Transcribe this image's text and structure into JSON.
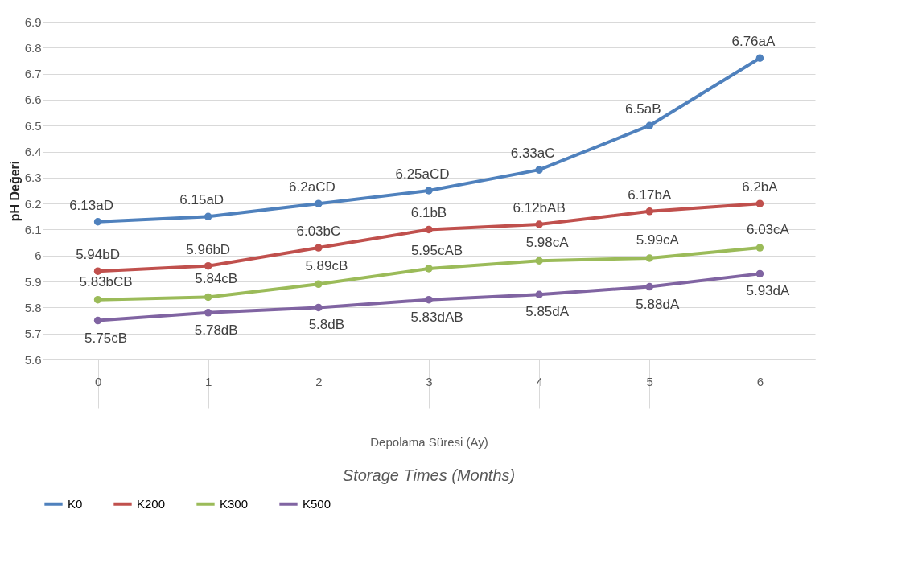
{
  "chart_data": {
    "type": "line",
    "xlabel": "Depolama Süresi (Ay)",
    "ylabel": "pH Değeri",
    "annotations": [
      "Storage Times (Months)"
    ],
    "categories": [
      "0",
      "1",
      "2",
      "3",
      "4",
      "5",
      "6"
    ],
    "series": [
      {
        "name": "K0",
        "color": "#4f81bd",
        "values": [
          6.13,
          6.15,
          6.2,
          6.25,
          6.33,
          6.5,
          6.76
        ],
        "value_labels": [
          "6.13aD",
          "6.15aD",
          "6.2aCD",
          "6.25aCD",
          "6.33aC",
          "6.5aB",
          "6.76aA"
        ]
      },
      {
        "name": "K200",
        "color": "#c0504d",
        "values": [
          5.94,
          5.96,
          6.03,
          6.1,
          6.12,
          6.17,
          6.2
        ],
        "value_labels": [
          "5.94bD",
          "5.96bD",
          "6.03bC",
          "6.1bB",
          "6.12bAB",
          "6.17bA",
          "6.2bA"
        ]
      },
      {
        "name": "K300",
        "color": "#9bbb59",
        "values": [
          5.83,
          5.84,
          5.89,
          5.95,
          5.98,
          5.99,
          6.03
        ],
        "value_labels": [
          "5.83bCB",
          "5.84cB",
          "5.89cB",
          "5.95cAB",
          "5.98cA",
          "5.99cA",
          "6.03cA"
        ]
      },
      {
        "name": "K500",
        "color": "#8064a2",
        "values": [
          5.75,
          5.78,
          5.8,
          5.83,
          5.85,
          5.88,
          5.93
        ],
        "value_labels": [
          "5.75cB",
          "5.78dB",
          "5.8dB",
          "5.83dAB",
          "5.85dA",
          "5.88dA",
          "5.93dA"
        ]
      }
    ],
    "ylim": [
      5.6,
      6.9
    ],
    "yticks": [
      5.6,
      5.7,
      5.8,
      5.9,
      6,
      6.1,
      6.2,
      6.3,
      6.4,
      6.5,
      6.6,
      6.7,
      6.8,
      6.9
    ],
    "grid": "y",
    "legend": "bottom",
    "marker": "circle",
    "line_style": "solid"
  }
}
